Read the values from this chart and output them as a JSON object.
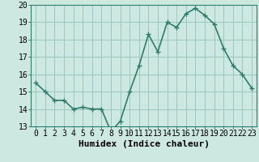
{
  "x": [
    0,
    1,
    2,
    3,
    4,
    5,
    6,
    7,
    8,
    9,
    10,
    11,
    12,
    13,
    14,
    15,
    16,
    17,
    18,
    19,
    20,
    21,
    22,
    23
  ],
  "y": [
    15.5,
    15.0,
    14.5,
    14.5,
    14.0,
    14.1,
    14.0,
    14.0,
    12.7,
    13.3,
    15.0,
    16.5,
    18.3,
    17.3,
    19.0,
    18.7,
    19.5,
    19.8,
    19.4,
    18.9,
    17.5,
    16.5,
    16.0,
    15.2
  ],
  "xlabel": "Humidex (Indice chaleur)",
  "ylim": [
    13,
    20
  ],
  "yticks": [
    13,
    14,
    15,
    16,
    17,
    18,
    19,
    20
  ],
  "xticks": [
    0,
    1,
    2,
    3,
    4,
    5,
    6,
    7,
    8,
    9,
    10,
    11,
    12,
    13,
    14,
    15,
    16,
    17,
    18,
    19,
    20,
    21,
    22,
    23
  ],
  "xtick_labels": [
    "0",
    "1",
    "2",
    "3",
    "4",
    "5",
    "6",
    "7",
    "8",
    "9",
    "10",
    "11",
    "12",
    "13",
    "14",
    "15",
    "16",
    "17",
    "18",
    "19",
    "20",
    "21",
    "22",
    "23"
  ],
  "line_color": "#2e7d6e",
  "marker_color": "#2e7d6e",
  "bg_color": "#cce8e0",
  "grid_color": "#9dc8bc",
  "xlabel_fontsize": 8,
  "tick_fontsize": 7,
  "line_width": 1.2,
  "marker_size": 2.8
}
